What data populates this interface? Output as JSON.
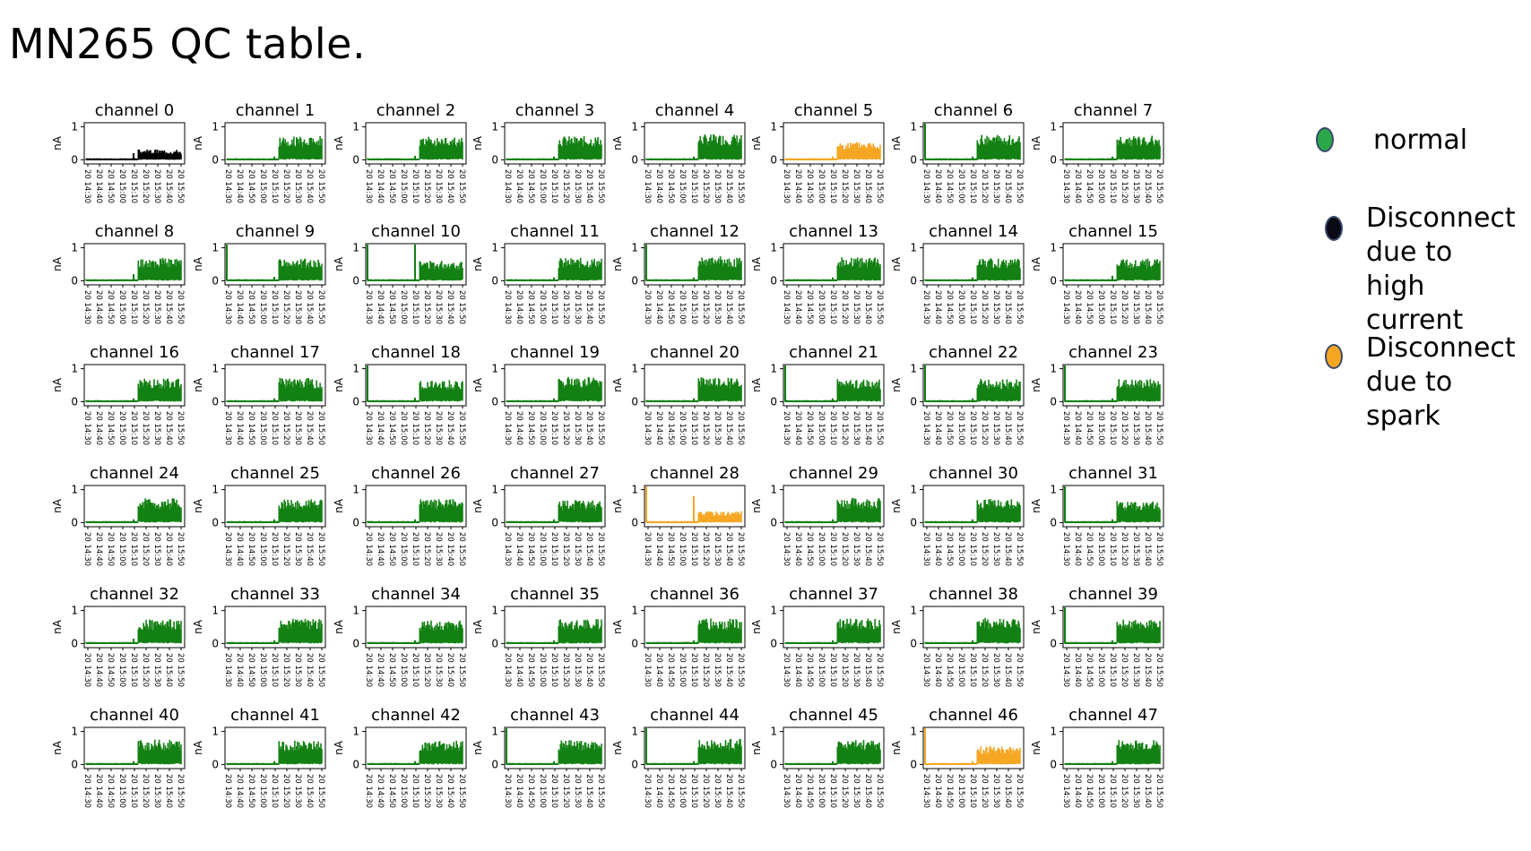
{
  "slide": {
    "title": "MN265 QC table."
  },
  "legend": [
    {
      "label": "normal",
      "color": "#2aa84a"
    },
    {
      "label": "Disconnect\ndue to high\ncurrent",
      "color": "#0a0a14"
    },
    {
      "label": "Disconnect\ndue to\nspark",
      "color": "#f5a623"
    }
  ],
  "chart_data": {
    "type": "line",
    "grid": false,
    "ylabel": "nA",
    "yticks": [
      "0",
      "1"
    ],
    "xticks": [
      "20 14:30",
      "20 14:40",
      "20 14:50",
      "20 15:00",
      "20 15:10",
      "20 15:20",
      "20 15:30",
      "20 15:40",
      "20 15:50"
    ],
    "status_colors": {
      "normal": "#128012",
      "high_current": "#000000",
      "spark": "#f5a623"
    },
    "channels": [
      {
        "name": "channel 0",
        "status": "high_current",
        "start_spike": false,
        "mid_spike": 0.2,
        "level": 0.32
      },
      {
        "name": "channel 1",
        "status": "normal",
        "start_spike": false,
        "mid_spike": 0.1,
        "level": 0.72
      },
      {
        "name": "channel 2",
        "status": "normal",
        "start_spike": false,
        "mid_spike": 0.12,
        "level": 0.7
      },
      {
        "name": "channel 3",
        "status": "normal",
        "start_spike": false,
        "mid_spike": 0.1,
        "level": 0.72
      },
      {
        "name": "channel 4",
        "status": "normal",
        "start_spike": false,
        "mid_spike": 0.1,
        "level": 0.78
      },
      {
        "name": "channel 5",
        "status": "spark",
        "start_spike": false,
        "mid_spike": 0.1,
        "level": 0.55
      },
      {
        "name": "channel 6",
        "status": "normal",
        "start_spike": true,
        "mid_spike": 0.1,
        "level": 0.76
      },
      {
        "name": "channel 7",
        "status": "normal",
        "start_spike": false,
        "mid_spike": 0.1,
        "level": 0.74
      },
      {
        "name": "channel 8",
        "status": "normal",
        "start_spike": false,
        "mid_spike": 0.2,
        "level": 0.7
      },
      {
        "name": "channel 9",
        "status": "normal",
        "start_spike": true,
        "mid_spike": 0.12,
        "level": 0.68
      },
      {
        "name": "channel 10",
        "status": "normal",
        "start_spike": true,
        "mid_spike": 1.1,
        "level": 0.62
      },
      {
        "name": "channel 11",
        "status": "normal",
        "start_spike": false,
        "mid_spike": 0.1,
        "level": 0.7
      },
      {
        "name": "channel 12",
        "status": "normal",
        "start_spike": true,
        "mid_spike": 0.1,
        "level": 0.74
      },
      {
        "name": "channel 13",
        "status": "normal",
        "start_spike": false,
        "mid_spike": 0.1,
        "level": 0.72
      },
      {
        "name": "channel 14",
        "status": "normal",
        "start_spike": false,
        "mid_spike": 0.1,
        "level": 0.68
      },
      {
        "name": "channel 15",
        "status": "normal",
        "start_spike": false,
        "mid_spike": 0.15,
        "level": 0.68
      },
      {
        "name": "channel 16",
        "status": "normal",
        "start_spike": false,
        "mid_spike": 0.1,
        "level": 0.7
      },
      {
        "name": "channel 17",
        "status": "normal",
        "start_spike": false,
        "mid_spike": 0.1,
        "level": 0.72
      },
      {
        "name": "channel 18",
        "status": "normal",
        "start_spike": true,
        "mid_spike": 0.12,
        "level": 0.66
      },
      {
        "name": "channel 19",
        "status": "normal",
        "start_spike": false,
        "mid_spike": 0.1,
        "level": 0.76
      },
      {
        "name": "channel 20",
        "status": "normal",
        "start_spike": false,
        "mid_spike": 0.1,
        "level": 0.74
      },
      {
        "name": "channel 21",
        "status": "normal",
        "start_spike": true,
        "mid_spike": 0.1,
        "level": 0.68
      },
      {
        "name": "channel 22",
        "status": "normal",
        "start_spike": true,
        "mid_spike": 0.1,
        "level": 0.7
      },
      {
        "name": "channel 23",
        "status": "normal",
        "start_spike": true,
        "mid_spike": 0.1,
        "level": 0.7
      },
      {
        "name": "channel 24",
        "status": "normal",
        "start_spike": false,
        "mid_spike": 0.1,
        "level": 0.74
      },
      {
        "name": "channel 25",
        "status": "normal",
        "start_spike": false,
        "mid_spike": 0.1,
        "level": 0.72
      },
      {
        "name": "channel 26",
        "status": "normal",
        "start_spike": false,
        "mid_spike": 0.1,
        "level": 0.72
      },
      {
        "name": "channel 27",
        "status": "normal",
        "start_spike": false,
        "mid_spike": 0.1,
        "level": 0.68
      },
      {
        "name": "channel 28",
        "status": "spark",
        "start_spike": true,
        "mid_spike": 0.8,
        "level": 0.35
      },
      {
        "name": "channel 29",
        "status": "normal",
        "start_spike": false,
        "mid_spike": 0.1,
        "level": 0.76
      },
      {
        "name": "channel 30",
        "status": "normal",
        "start_spike": false,
        "mid_spike": 0.1,
        "level": 0.72
      },
      {
        "name": "channel 31",
        "status": "normal",
        "start_spike": true,
        "mid_spike": 0.1,
        "level": 0.66
      },
      {
        "name": "channel 32",
        "status": "normal",
        "start_spike": false,
        "mid_spike": 0.15,
        "level": 0.74
      },
      {
        "name": "channel 33",
        "status": "normal",
        "start_spike": false,
        "mid_spike": 0.1,
        "level": 0.76
      },
      {
        "name": "channel 34",
        "status": "normal",
        "start_spike": false,
        "mid_spike": 0.1,
        "level": 0.7
      },
      {
        "name": "channel 35",
        "status": "normal",
        "start_spike": false,
        "mid_spike": 0.1,
        "level": 0.74
      },
      {
        "name": "channel 36",
        "status": "normal",
        "start_spike": false,
        "mid_spike": 0.1,
        "level": 0.76
      },
      {
        "name": "channel 37",
        "status": "normal",
        "start_spike": false,
        "mid_spike": 0.1,
        "level": 0.78
      },
      {
        "name": "channel 38",
        "status": "normal",
        "start_spike": false,
        "mid_spike": 0.1,
        "level": 0.78
      },
      {
        "name": "channel 39",
        "status": "normal",
        "start_spike": true,
        "mid_spike": 0.1,
        "level": 0.74
      },
      {
        "name": "channel 40",
        "status": "normal",
        "start_spike": false,
        "mid_spike": 0.1,
        "level": 0.76
      },
      {
        "name": "channel 41",
        "status": "normal",
        "start_spike": false,
        "mid_spike": 0.1,
        "level": 0.72
      },
      {
        "name": "channel 42",
        "status": "normal",
        "start_spike": false,
        "mid_spike": 0.1,
        "level": 0.72
      },
      {
        "name": "channel 43",
        "status": "normal",
        "start_spike": true,
        "mid_spike": 0.1,
        "level": 0.74
      },
      {
        "name": "channel 44",
        "status": "normal",
        "start_spike": true,
        "mid_spike": 0.1,
        "level": 0.78
      },
      {
        "name": "channel 45",
        "status": "normal",
        "start_spike": false,
        "mid_spike": 0.1,
        "level": 0.76
      },
      {
        "name": "channel 46",
        "status": "spark",
        "start_spike": true,
        "mid_spike": 0.1,
        "level": 0.56
      },
      {
        "name": "channel 47",
        "status": "normal",
        "start_spike": false,
        "mid_spike": 0.1,
        "level": 0.74
      }
    ]
  }
}
